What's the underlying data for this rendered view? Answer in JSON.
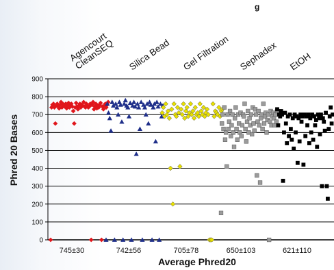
{
  "chart_data": {
    "type": "scatter",
    "title_fragment": "g",
    "xlabel": "Average Phred20",
    "ylabel": "Phred 20 Bases",
    "ylim": [
      0,
      900
    ],
    "yticks": [
      0,
      100,
      200,
      300,
      400,
      500,
      600,
      700,
      800,
      900
    ],
    "grid": true,
    "series": [
      {
        "name": "Agencourt CleanSEQ",
        "color": "#e0161b",
        "marker": "diamond",
        "stat": "745±30",
        "values": [
          0,
          740,
          755,
          760,
          740,
          650,
          750,
          760,
          745,
          735,
          755,
          770,
          740,
          760,
          750,
          745,
          760,
          735,
          750,
          765,
          740,
          755,
          760,
          745,
          720,
          650,
          740,
          765,
          745,
          730,
          750,
          760,
          740,
          755,
          750,
          770,
          745,
          740,
          760,
          750,
          740,
          745,
          760,
          0,
          755,
          770,
          730,
          745,
          760,
          735,
          750,
          740,
          755,
          765,
          0,
          745,
          730,
          750,
          760,
          740,
          755,
          770
        ]
      },
      {
        "name": "Silica Bead",
        "color": "#1f2f8a",
        "marker": "triangle",
        "stat": "742±56",
        "values": [
          0,
          760,
          710,
          680,
          610,
          770,
          750,
          0,
          760,
          740,
          700,
          770,
          755,
          660,
          0,
          760,
          780,
          750,
          740,
          690,
          765,
          0,
          750,
          770,
          745,
          480,
          760,
          740,
          620,
          770,
          0,
          755,
          740,
          700,
          760,
          650,
          770,
          755,
          0,
          740,
          760,
          550,
          770,
          745,
          0,
          760,
          690,
          750
        ]
      },
      {
        "name": "Gel Filtration",
        "color": "#e8e000",
        "marker": "diamond",
        "stat": "705±78",
        "values": [
          710,
          740,
          690,
          760,
          700,
          720,
          680,
          400,
          730,
          200,
          760,
          700,
          690,
          740,
          710,
          410,
          730,
          700,
          760,
          680,
          720,
          740,
          690,
          710,
          760,
          700,
          720,
          680,
          740,
          700,
          710,
          690,
          760,
          720,
          700,
          740,
          690,
          710,
          730,
          700,
          0,
          0,
          0,
          760,
          690,
          720,
          710,
          700,
          740,
          690,
          720,
          730
        ]
      },
      {
        "name": "Sephadex",
        "color": "#9b9b9b",
        "marker": "square",
        "stat": "650±103",
        "values": [
          150,
          650,
          700,
          620,
          740,
          560,
          600,
          410,
          700,
          620,
          660,
          720,
          580,
          640,
          700,
          600,
          520,
          680,
          740,
          620,
          560,
          700,
          650,
          600,
          710,
          580,
          640,
          700,
          690,
          760,
          620,
          550,
          660,
          720,
          600,
          680,
          640,
          700,
          590,
          740,
          650,
          610,
          730,
          700,
          360,
          660,
          720,
          640,
          320,
          680,
          700,
          620,
          760,
          650,
          690,
          710,
          600,
          670,
          700,
          0,
          660,
          720,
          640,
          690,
          710,
          680,
          640,
          700,
          660,
          720
        ]
      },
      {
        "name": "EtOH",
        "color": "#000000",
        "marker": "square",
        "stat": "621±110",
        "values": [
          730,
          640,
          700,
          690,
          720,
          700,
          330,
          600,
          710,
          650,
          540,
          690,
          580,
          700,
          620,
          560,
          680,
          510,
          700,
          600,
          690,
          430,
          680,
          550,
          700,
          660,
          690,
          420,
          700,
          580,
          690,
          640,
          700,
          540,
          680,
          600,
          700,
          560,
          690,
          640,
          670,
          520,
          700,
          680,
          590,
          700,
          300,
          680,
          660,
          610,
          710,
          300,
          230,
          620,
          690,
          740,
          650,
          700
        ]
      }
    ]
  }
}
